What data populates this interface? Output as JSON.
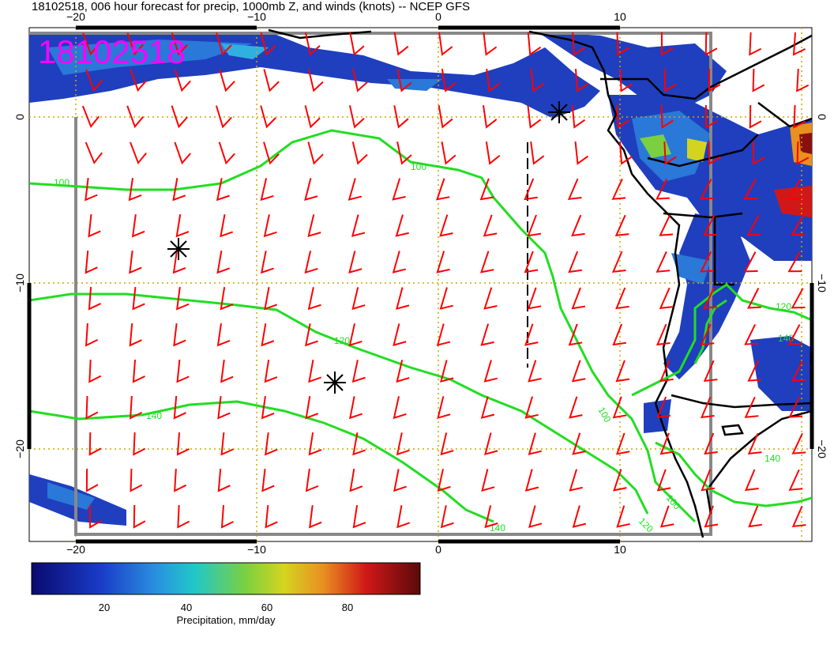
{
  "title": "18102518, 006 hour forecast for precip, 1000mb Z, and winds (knots) -- NCEP GFS",
  "stamp": "18102518",
  "map": {
    "lon_ticks": [
      -20,
      -10,
      0,
      10
    ],
    "lat_ticks": [
      0,
      -10,
      -20
    ],
    "lon_labels": [
      "−20",
      "−10",
      "0",
      "10"
    ],
    "lat_labels": [
      "0",
      "−10",
      "−20"
    ],
    "contours": [
      {
        "label": "100",
        "color": "#22dd22"
      },
      {
        "label": "120",
        "color": "#22dd22"
      },
      {
        "label": "140",
        "color": "#22dd22"
      }
    ],
    "high_pressure_markers": 3,
    "wind_barb_color": "#ff0000",
    "coast_color": "#000000",
    "grid_color": "#ccaa00"
  },
  "colorbar": {
    "label": "Precipitation, mm/day",
    "ticks": [
      "20",
      "40",
      "60",
      "80"
    ]
  },
  "colors": {
    "stamp": "#ff00ff",
    "contour": "#22dd22",
    "barb": "#ff0000"
  }
}
